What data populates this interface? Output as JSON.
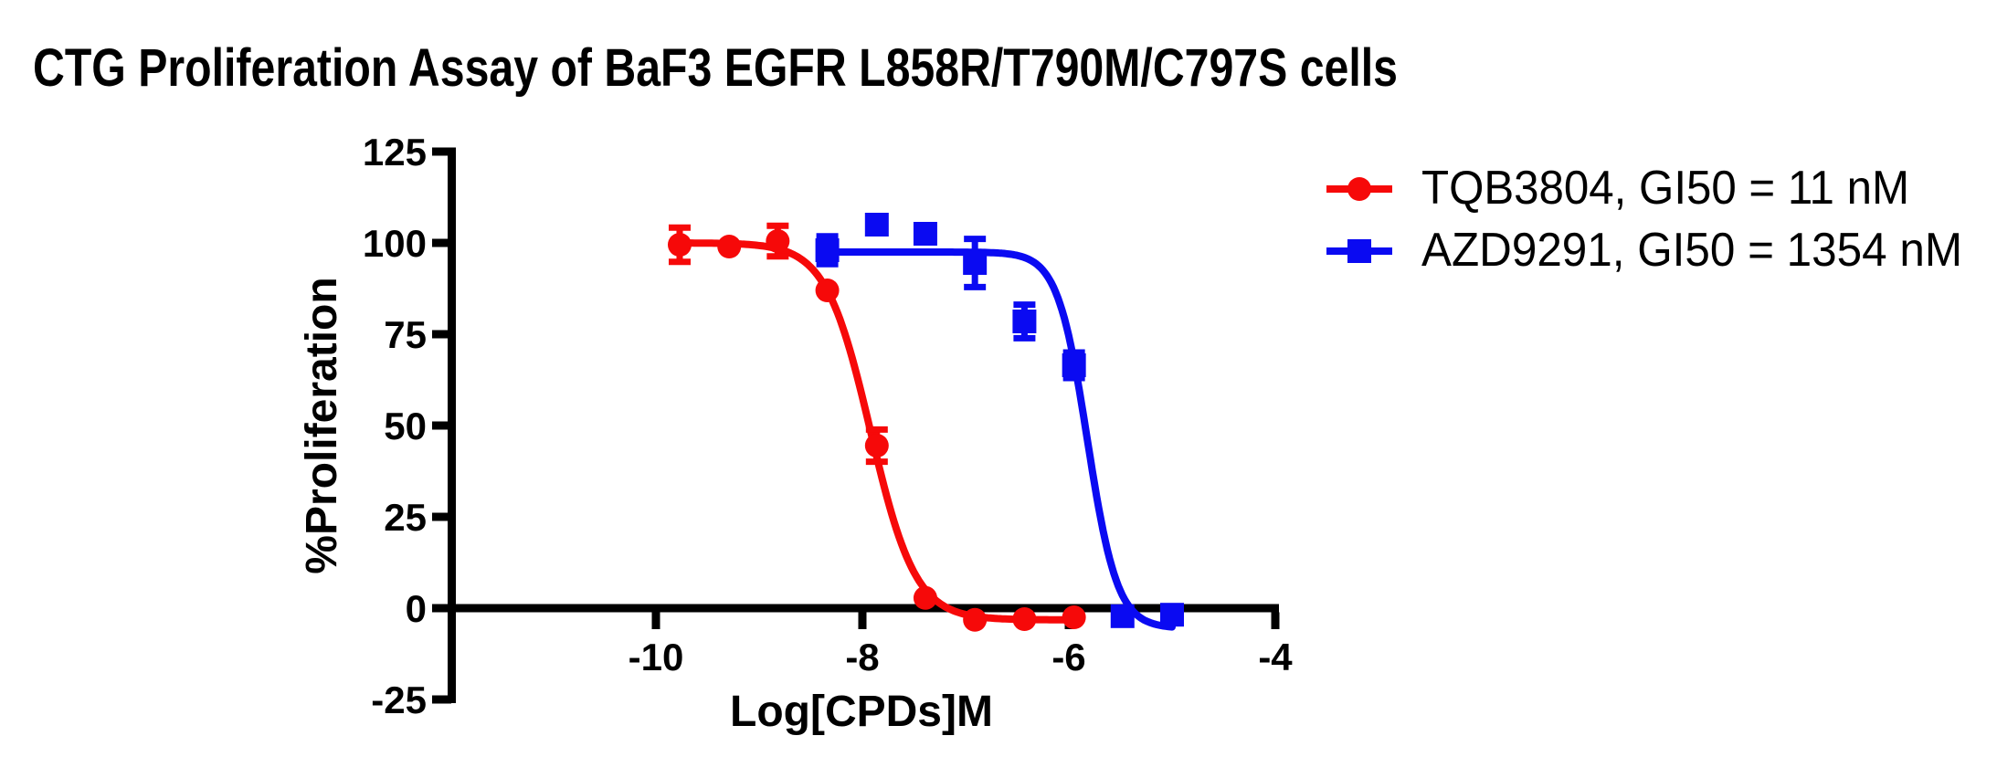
{
  "chart_data": {
    "type": "scatter",
    "subtype": "dose-response-curves",
    "title": "CTG Proliferation Assay of BaF3 EGFR L858R/T790M/C797S cells",
    "xlabel": "Log[CPDs]M",
    "ylabel": "%Proliferation",
    "xlim": [
      -12,
      -4
    ],
    "ylim": [
      -25,
      125
    ],
    "x_ticks": [
      -10,
      -8,
      -6,
      -4
    ],
    "y_ticks": [
      125,
      100,
      75,
      50,
      25,
      0,
      -25
    ],
    "grid": false,
    "legend_position": "top-right",
    "axis_color": "#000000",
    "background_color": "#ffffff",
    "series": [
      {
        "name": "TQB3804, GI50 = 11 nM",
        "compound": "TQB3804",
        "gi50_label": "11 nM",
        "color": "#f60909",
        "marker": "circle",
        "x": [
          -9.77,
          -9.29,
          -8.82,
          -8.34,
          -7.86,
          -7.39,
          -6.91,
          -6.43,
          -5.95
        ],
        "y": [
          99.5,
          99.0,
          100.5,
          87.0,
          44.5,
          2.8,
          -3.2,
          -3.0,
          -2.5
        ],
        "yerr": [
          4.7,
          0,
          4.2,
          0,
          4.4,
          0,
          0,
          0,
          0
        ],
        "fit": {
          "model": "4PL",
          "top": 100,
          "bottom": -3.2,
          "logIC50": -7.92,
          "hill": 2.0
        }
      },
      {
        "name": "AZD9291, GI50 = 1354 nM",
        "compound": "AZD9291",
        "gi50_label": "1354 nM",
        "color": "#0a0af2",
        "marker": "square",
        "x": [
          -8.34,
          -7.86,
          -7.39,
          -6.91,
          -6.43,
          -5.95,
          -5.48,
          -5.0
        ],
        "y": [
          98.0,
          105.0,
          102.5,
          94.5,
          78.5,
          66.5,
          -2.2,
          -1.8
        ],
        "yerr": [
          3.8,
          0,
          0,
          6.6,
          4.6,
          3.5,
          0,
          0
        ],
        "fit": {
          "model": "4PL",
          "top": 97.5,
          "bottom": -5.5,
          "logIC50": -5.82,
          "hill": 3.0
        }
      }
    ]
  }
}
